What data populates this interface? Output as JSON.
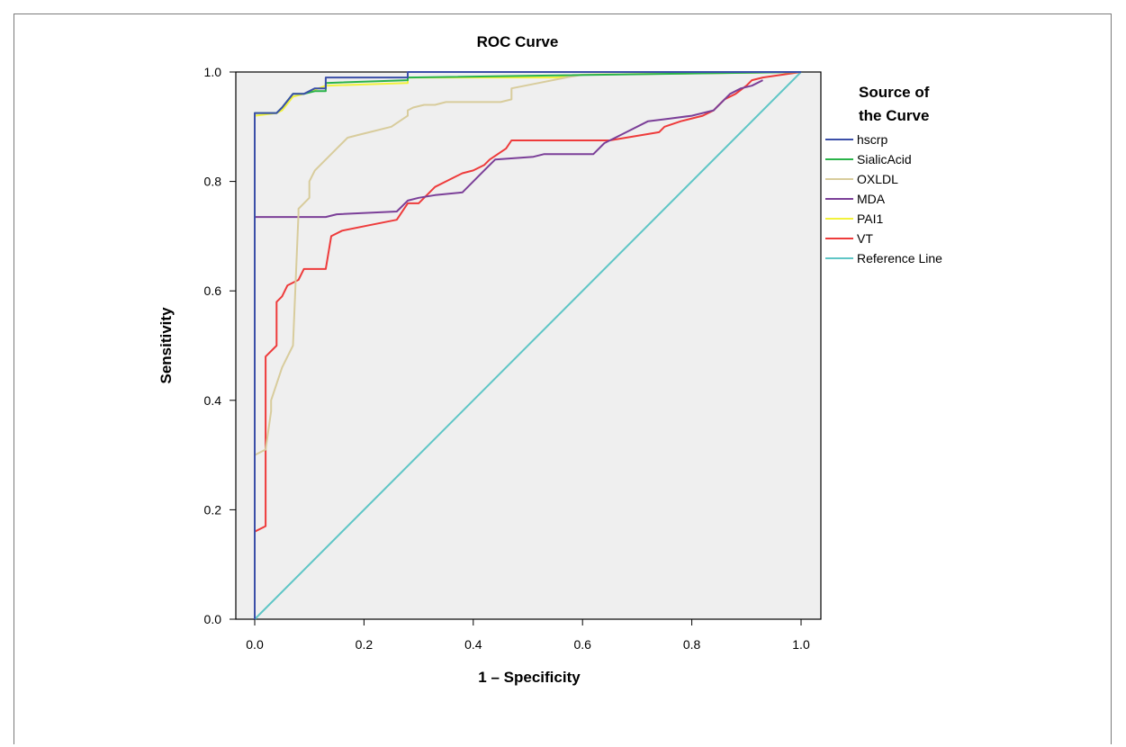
{
  "chart_data": {
    "type": "line",
    "title": "ROC Curve",
    "xlabel": "1 – Specificity",
    "ylabel": "Sensitivity",
    "xlim": [
      0,
      1
    ],
    "ylim": [
      0,
      1
    ],
    "xticks": [
      "0.0",
      "0.2",
      "0.4",
      "0.6",
      "0.8",
      "1.0"
    ],
    "yticks": [
      "0.0",
      "0.2",
      "0.4",
      "0.6",
      "0.8",
      "1.0"
    ],
    "grid": false,
    "legend_title": "Source of the Curve",
    "legend_placement": "right",
    "series": [
      {
        "name": "hscrp",
        "color": "#3b4fa8",
        "x": [
          0,
          0,
          0.04,
          0.05,
          0.07,
          0.09,
          0.11,
          0.13,
          0.13,
          0.28,
          0.28,
          1.0
        ],
        "y": [
          0,
          0.925,
          0.925,
          0.935,
          0.96,
          0.96,
          0.97,
          0.97,
          0.99,
          0.99,
          1.0,
          1.0
        ]
      },
      {
        "name": "SialicAcid",
        "color": "#2ab34a",
        "x": [
          0,
          0,
          0.04,
          0.05,
          0.07,
          0.09,
          0.11,
          0.13,
          0.13,
          0.28,
          0.28,
          1.0
        ],
        "y": [
          0,
          0.925,
          0.925,
          0.935,
          0.96,
          0.96,
          0.965,
          0.965,
          0.98,
          0.985,
          0.99,
          1.0
        ]
      },
      {
        "name": "OXLDL",
        "color": "#d8cc9c",
        "x": [
          0,
          0,
          0.02,
          0.03,
          0.03,
          0.05,
          0.06,
          0.07,
          0.08,
          0.08,
          0.1,
          0.1,
          0.11,
          0.13,
          0.15,
          0.17,
          0.19,
          0.21,
          0.25,
          0.28,
          0.28,
          0.29,
          0.31,
          0.33,
          0.35,
          0.45,
          0.47,
          0.47,
          0.52,
          0.57,
          0.6,
          1.0
        ],
        "y": [
          0,
          0.3,
          0.31,
          0.38,
          0.4,
          0.46,
          0.48,
          0.5,
          0.74,
          0.75,
          0.77,
          0.8,
          0.82,
          0.84,
          0.86,
          0.88,
          0.885,
          0.89,
          0.9,
          0.92,
          0.93,
          0.935,
          0.94,
          0.94,
          0.945,
          0.945,
          0.95,
          0.97,
          0.98,
          0.99,
          0.995,
          1.0
        ]
      },
      {
        "name": "MDA",
        "color": "#7b3f98",
        "x": [
          0,
          0,
          0.1,
          0.13,
          0.15,
          0.26,
          0.27,
          0.28,
          0.3,
          0.33,
          0.38,
          0.42,
          0.44,
          0.51,
          0.53,
          0.62,
          0.64,
          0.66,
          0.68,
          0.72,
          0.76,
          0.8,
          0.82,
          0.84,
          0.86,
          0.87,
          0.89,
          0.91,
          0.93
        ],
        "y": [
          0,
          0.735,
          0.735,
          0.735,
          0.74,
          0.745,
          0.755,
          0.765,
          0.77,
          0.775,
          0.78,
          0.82,
          0.84,
          0.845,
          0.85,
          0.85,
          0.87,
          0.88,
          0.89,
          0.91,
          0.915,
          0.92,
          0.925,
          0.93,
          0.95,
          0.96,
          0.97,
          0.975,
          0.985
        ]
      },
      {
        "name": "PAI1",
        "color": "#f2f23c",
        "x": [
          0,
          0,
          0.04,
          0.05,
          0.07,
          0.09,
          0.13,
          0.28,
          0.28,
          0.55,
          0.6,
          1.0
        ],
        "y": [
          0,
          0.92,
          0.925,
          0.93,
          0.955,
          0.96,
          0.975,
          0.98,
          0.99,
          0.99,
          0.995,
          1.0
        ]
      },
      {
        "name": "VT",
        "color": "#ee3b3b",
        "x": [
          0,
          0,
          0.02,
          0.02,
          0.04,
          0.04,
          0.05,
          0.06,
          0.08,
          0.09,
          0.13,
          0.14,
          0.16,
          0.21,
          0.26,
          0.28,
          0.3,
          0.32,
          0.33,
          0.35,
          0.37,
          0.38,
          0.4,
          0.42,
          0.43,
          0.46,
          0.47,
          0.52,
          0.6,
          0.65,
          0.74,
          0.75,
          0.78,
          0.82,
          0.84,
          0.85,
          0.86,
          0.88,
          0.9,
          0.91,
          0.93,
          1.0
        ],
        "y": [
          0,
          0.16,
          0.17,
          0.48,
          0.5,
          0.58,
          0.59,
          0.61,
          0.62,
          0.64,
          0.64,
          0.7,
          0.71,
          0.72,
          0.73,
          0.76,
          0.76,
          0.78,
          0.79,
          0.8,
          0.81,
          0.815,
          0.82,
          0.83,
          0.84,
          0.86,
          0.875,
          0.875,
          0.875,
          0.875,
          0.89,
          0.9,
          0.91,
          0.92,
          0.93,
          0.94,
          0.95,
          0.96,
          0.975,
          0.985,
          0.99,
          1.0
        ]
      },
      {
        "name": "Reference Line",
        "color": "#5fc6c6",
        "x": [
          0,
          1
        ],
        "y": [
          0,
          1
        ]
      }
    ]
  }
}
